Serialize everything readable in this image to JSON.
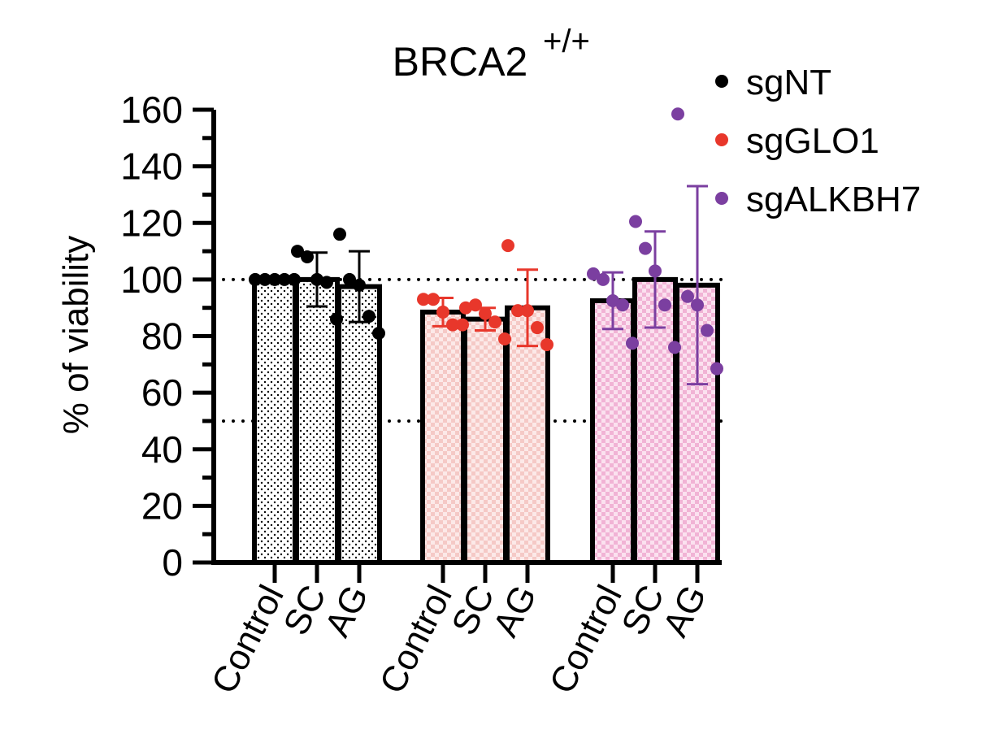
{
  "chart_data": {
    "type": "bar",
    "title": "BRCA2",
    "title_superscript": "+/+",
    "ylabel": "% of viability",
    "xlabel": "",
    "ylim": [
      0,
      160
    ],
    "yticks": [
      0,
      20,
      40,
      60,
      80,
      100,
      120,
      140,
      160
    ],
    "reference_lines": [
      100,
      50
    ],
    "legend_position": "top-right",
    "colors": {
      "sgNT": "#000000",
      "sgGLO1": "#e8372b",
      "sgALKBH7": "#7b3fa0"
    },
    "fills": {
      "sgNT": "#ffffff",
      "sgGLO1": "#f7d4d2",
      "sgALKBH7": "#f3c3dd"
    },
    "series": [
      {
        "name": "sgNT",
        "categories": [
          "Control",
          "SC",
          "AG"
        ],
        "values": [
          100,
          100,
          97.5
        ],
        "error": [
          0,
          9.5,
          12.5
        ],
        "points": [
          [
            100,
            100,
            100,
            100,
            100
          ],
          [
            110,
            108,
            100,
            99,
            86
          ],
          [
            116,
            100,
            98,
            87,
            81
          ]
        ]
      },
      {
        "name": "sgGLO1",
        "categories": [
          "Control",
          "SC",
          "AG"
        ],
        "values": [
          88.5,
          86,
          90
        ],
        "error": [
          5,
          4,
          13.5
        ],
        "points": [
          [
            93,
            93,
            88.5,
            84,
            84
          ],
          [
            90,
            91,
            88,
            85,
            79
          ],
          [
            112,
            89,
            89,
            83,
            77
          ]
        ]
      },
      {
        "name": "sgALKBH7",
        "categories": [
          "Control",
          "SC",
          "AG"
        ],
        "values": [
          92.5,
          100,
          98
        ],
        "error": [
          10,
          17,
          35
        ],
        "points": [
          [
            102,
            100,
            92.5,
            91,
            77.5
          ],
          [
            120.5,
            111,
            103,
            91,
            76
          ],
          [
            158.5,
            94,
            91,
            82,
            68.5
          ]
        ]
      }
    ]
  }
}
